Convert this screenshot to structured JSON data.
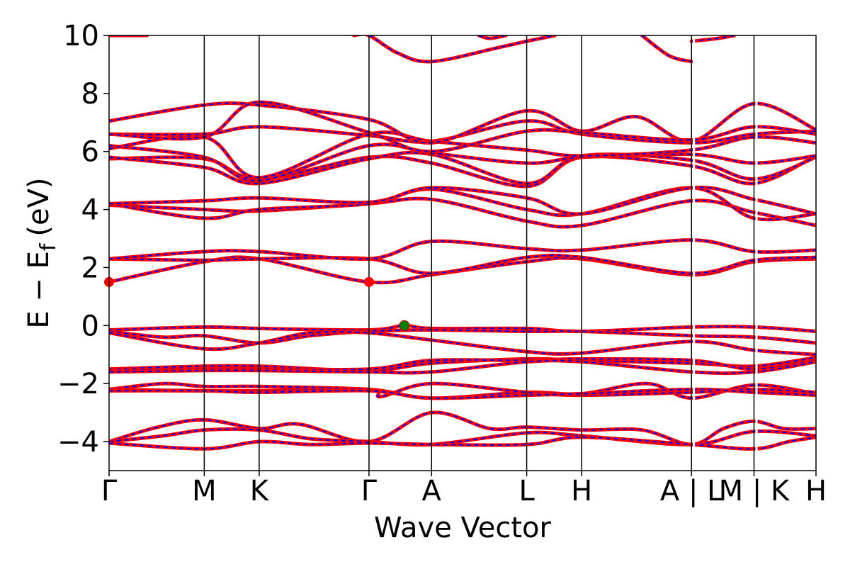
{
  "chart_data": {
    "type": "line",
    "title": "",
    "xlabel": "Wave Vector",
    "ylabel_parts": {
      "main": "E − E",
      "subscript": "f",
      "unit": "(eV)"
    },
    "ylim": [
      -5,
      10
    ],
    "yticks": [
      -4,
      -2,
      0,
      2,
      4,
      6,
      8,
      10
    ],
    "ytick_labels": [
      "−4",
      "−2",
      "0",
      "2",
      "4",
      "6",
      "8",
      "10"
    ],
    "xlim": [
      0,
      13.0
    ],
    "kpath": [
      {
        "label": "Γ",
        "x": 0.0
      },
      {
        "label": "M",
        "x": 1.75
      },
      {
        "label": "K",
        "x": 2.76
      },
      {
        "label": "Γ",
        "x": 4.78
      },
      {
        "label": "A",
        "x": 5.93
      },
      {
        "label": "L",
        "x": 7.68
      },
      {
        "label": "H",
        "x": 8.69
      },
      {
        "label": "A | L",
        "x": 10.71
      },
      {
        "label": "M | K",
        "x": 11.86
      },
      {
        "label": "H",
        "x": 13.0
      }
    ],
    "segment_breaks": [
      10.71,
      11.86
    ],
    "line_style": {
      "under_color": "#ff0000",
      "over_color": "#0000ff",
      "over_dash": "dashed"
    },
    "markers": [
      {
        "name": "cbm",
        "x": 0.0,
        "y": 1.5,
        "color": "#ff0000"
      },
      {
        "name": "cbm",
        "x": 4.78,
        "y": 1.5,
        "color": "#ff0000"
      },
      {
        "name": "vbm",
        "x": 5.43,
        "y": 0.0,
        "color": "#008000"
      }
    ],
    "bands": [
      [
        [
          0,
          -4.0
        ],
        [
          0.9,
          -3.5
        ],
        [
          1.75,
          -3.25
        ],
        [
          2.76,
          -3.55
        ],
        [
          3.5,
          -3.4
        ],
        [
          4.78,
          -4.0
        ],
        [
          5.93,
          -3.0
        ],
        [
          7.0,
          -3.55
        ],
        [
          7.68,
          -3.5
        ],
        [
          8.69,
          -3.6
        ],
        [
          9.8,
          -3.6
        ],
        [
          10.71,
          -4.1
        ],
        [
          11.3,
          -3.55
        ],
        [
          11.86,
          -3.3
        ],
        [
          12.4,
          -3.55
        ],
        [
          13.0,
          -3.55
        ]
      ],
      [
        [
          0,
          -4.0
        ],
        [
          1.0,
          -3.8
        ],
        [
          1.75,
          -3.6
        ],
        [
          2.76,
          -3.6
        ],
        [
          3.7,
          -3.9
        ],
        [
          4.78,
          -4.0
        ],
        [
          5.93,
          -4.1
        ],
        [
          7.68,
          -3.7
        ],
        [
          8.69,
          -3.8
        ],
        [
          10.71,
          -4.1
        ],
        [
          11.86,
          -3.65
        ],
        [
          13.0,
          -3.8
        ]
      ],
      [
        [
          0,
          -4.05
        ],
        [
          1.75,
          -4.25
        ],
        [
          2.76,
          -4.0
        ],
        [
          3.7,
          -4.1
        ],
        [
          4.78,
          -4.05
        ],
        [
          5.93,
          -4.1
        ],
        [
          7.68,
          -4.1
        ],
        [
          8.69,
          -3.85
        ],
        [
          10.71,
          -4.1
        ],
        [
          11.86,
          -4.25
        ],
        [
          12.5,
          -4.0
        ],
        [
          13.0,
          -3.85
        ]
      ],
      [
        [
          0,
          -2.2
        ],
        [
          1.0,
          -2.0
        ],
        [
          1.75,
          -2.1
        ],
        [
          2.76,
          -2.1
        ],
        [
          4.78,
          -2.2
        ],
        [
          5.93,
          -2.5
        ],
        [
          7.68,
          -2.3
        ],
        [
          8.69,
          -2.35
        ],
        [
          9.9,
          -2.0
        ],
        [
          10.71,
          -2.5
        ],
        [
          11.86,
          -2.05
        ],
        [
          13.0,
          -2.35
        ]
      ],
      [
        [
          0,
          -2.2
        ],
        [
          1.75,
          -2.25
        ],
        [
          2.76,
          -2.25
        ],
        [
          4.78,
          -2.2
        ],
        [
          5.0,
          -2.45
        ],
        [
          5.93,
          -2.0
        ],
        [
          7.68,
          -2.3
        ],
        [
          8.69,
          -2.4
        ],
        [
          10.71,
          -2.3
        ],
        [
          11.86,
          -2.2
        ],
        [
          13.0,
          -2.3
        ]
      ],
      [
        [
          0,
          -2.25
        ],
        [
          1.75,
          -2.25
        ],
        [
          2.76,
          -2.3
        ],
        [
          4.78,
          -2.25
        ],
        [
          5.93,
          -2.5
        ],
        [
          7.68,
          -2.4
        ],
        [
          8.69,
          -2.35
        ],
        [
          10.71,
          -2.2
        ],
        [
          11.86,
          -2.3
        ],
        [
          13.0,
          -2.4
        ]
      ],
      [
        [
          0,
          -1.5
        ],
        [
          1.75,
          -1.4
        ],
        [
          2.76,
          -1.4
        ],
        [
          4.78,
          -1.55
        ],
        [
          5.93,
          -1.3
        ],
        [
          7.68,
          -1.15
        ],
        [
          8.69,
          -1.2
        ],
        [
          10.71,
          -1.3
        ],
        [
          11.86,
          -1.4
        ],
        [
          13.0,
          -1.1
        ]
      ],
      [
        [
          0,
          -1.55
        ],
        [
          1.75,
          -1.5
        ],
        [
          2.76,
          -1.5
        ],
        [
          4.78,
          -1.5
        ],
        [
          5.93,
          -1.2
        ],
        [
          7.68,
          -1.2
        ],
        [
          8.69,
          -1.15
        ],
        [
          10.71,
          -1.2
        ],
        [
          11.86,
          -1.5
        ],
        [
          13.0,
          -1.2
        ]
      ],
      [
        [
          0,
          -1.6
        ],
        [
          1.75,
          -1.55
        ],
        [
          2.76,
          -1.55
        ],
        [
          4.78,
          -1.6
        ],
        [
          5.93,
          -1.6
        ],
        [
          7.68,
          -1.25
        ],
        [
          8.69,
          -1.25
        ],
        [
          10.71,
          -1.6
        ],
        [
          11.86,
          -1.6
        ],
        [
          13.0,
          -1.25
        ]
      ],
      [
        [
          0,
          -0.15
        ],
        [
          1.75,
          -0.05
        ],
        [
          2.76,
          -0.1
        ],
        [
          4.78,
          -0.15
        ],
        [
          5.43,
          0.0
        ],
        [
          5.93,
          -0.1
        ],
        [
          7.68,
          -0.1
        ],
        [
          8.69,
          -0.2
        ],
        [
          10.71,
          -0.05
        ],
        [
          11.86,
          -0.05
        ],
        [
          13.0,
          -0.2
        ]
      ],
      [
        [
          0,
          -0.2
        ],
        [
          1.0,
          -0.4
        ],
        [
          1.75,
          -0.35
        ],
        [
          2.76,
          -0.6
        ],
        [
          3.7,
          -0.35
        ],
        [
          4.78,
          -0.2
        ],
        [
          5.93,
          -0.15
        ],
        [
          7.68,
          -0.2
        ],
        [
          8.69,
          -0.2
        ],
        [
          10.71,
          -0.35
        ],
        [
          11.86,
          -0.4
        ],
        [
          13.0,
          -0.6
        ]
      ],
      [
        [
          0,
          -0.25
        ],
        [
          1.75,
          -0.8
        ],
        [
          2.76,
          -0.6
        ],
        [
          3.7,
          -0.25
        ],
        [
          4.78,
          -0.25
        ],
        [
          5.93,
          -0.5
        ],
        [
          7.68,
          -0.9
        ],
        [
          8.69,
          -0.95
        ],
        [
          10.71,
          -0.55
        ],
        [
          11.86,
          -0.85
        ],
        [
          13.0,
          -1.0
        ]
      ],
      [
        [
          0,
          1.5
        ],
        [
          1.75,
          2.2
        ],
        [
          2.76,
          2.3
        ],
        [
          4.78,
          1.5
        ],
        [
          5.93,
          1.75
        ],
        [
          7.68,
          2.2
        ],
        [
          8.69,
          2.3
        ],
        [
          10.71,
          1.75
        ],
        [
          11.86,
          2.2
        ],
        [
          13.0,
          2.3
        ]
      ],
      [
        [
          0,
          2.3
        ],
        [
          1.75,
          2.25
        ],
        [
          2.76,
          2.3
        ],
        [
          4.78,
          2.3
        ],
        [
          5.93,
          1.8
        ],
        [
          7.68,
          2.35
        ],
        [
          8.69,
          2.35
        ],
        [
          10.71,
          1.8
        ],
        [
          11.86,
          2.25
        ],
        [
          13.0,
          2.35
        ]
      ],
      [
        [
          0,
          2.3
        ],
        [
          1.75,
          2.55
        ],
        [
          2.76,
          2.55
        ],
        [
          4.78,
          2.3
        ],
        [
          5.93,
          2.9
        ],
        [
          7.68,
          2.65
        ],
        [
          8.69,
          2.6
        ],
        [
          10.71,
          2.95
        ],
        [
          11.86,
          2.55
        ],
        [
          13.0,
          2.6
        ]
      ],
      [
        [
          0,
          4.15
        ],
        [
          1.75,
          4.0
        ],
        [
          2.76,
          3.95
        ],
        [
          4.78,
          4.2
        ],
        [
          5.93,
          4.35
        ],
        [
          7.68,
          3.6
        ],
        [
          8.69,
          3.45
        ],
        [
          10.71,
          4.3
        ],
        [
          11.86,
          3.9
        ],
        [
          13.0,
          3.45
        ]
      ],
      [
        [
          0,
          4.2
        ],
        [
          1.75,
          3.7
        ],
        [
          2.76,
          4.0
        ],
        [
          4.78,
          4.2
        ],
        [
          5.93,
          4.7
        ],
        [
          7.68,
          4.0
        ],
        [
          8.69,
          3.85
        ],
        [
          10.71,
          4.75
        ],
        [
          11.86,
          3.7
        ],
        [
          13.0,
          3.85
        ]
      ],
      [
        [
          0,
          4.2
        ],
        [
          1.75,
          4.3
        ],
        [
          2.76,
          4.4
        ],
        [
          4.78,
          4.25
        ],
        [
          5.93,
          4.75
        ],
        [
          7.68,
          4.4
        ],
        [
          8.69,
          3.85
        ],
        [
          10.71,
          4.75
        ],
        [
          11.86,
          4.35
        ],
        [
          13.0,
          3.85
        ]
      ],
      [
        [
          0,
          5.75
        ],
        [
          1.75,
          5.75
        ],
        [
          2.76,
          5.05
        ],
        [
          4.78,
          5.8
        ],
        [
          5.93,
          5.6
        ],
        [
          7.68,
          4.8
        ],
        [
          8.69,
          5.8
        ],
        [
          10.71,
          5.5
        ],
        [
          11.86,
          4.9
        ],
        [
          13.0,
          5.85
        ]
      ],
      [
        [
          0,
          5.8
        ],
        [
          1.75,
          5.45
        ],
        [
          2.76,
          4.9
        ],
        [
          4.78,
          5.75
        ],
        [
          5.93,
          5.9
        ],
        [
          7.68,
          4.9
        ],
        [
          8.69,
          5.85
        ],
        [
          10.71,
          5.7
        ],
        [
          11.86,
          5.05
        ],
        [
          13.0,
          5.8
        ]
      ],
      [
        [
          0,
          6.2
        ],
        [
          1.75,
          5.8
        ],
        [
          2.76,
          5.0
        ],
        [
          4.78,
          6.2
        ],
        [
          5.93,
          5.95
        ],
        [
          7.68,
          5.6
        ],
        [
          8.69,
          5.8
        ],
        [
          10.71,
          5.9
        ],
        [
          11.86,
          5.6
        ],
        [
          13.0,
          5.85
        ]
      ],
      [
        [
          0,
          6.1
        ],
        [
          1.75,
          6.5
        ],
        [
          2.76,
          5.1
        ],
        [
          4.78,
          6.6
        ],
        [
          5.93,
          6.35
        ],
        [
          7.68,
          6.05
        ],
        [
          8.69,
          5.85
        ],
        [
          10.71,
          6.05
        ],
        [
          11.86,
          6.5
        ],
        [
          13.0,
          6.3
        ]
      ],
      [
        [
          0,
          6.6
        ],
        [
          1.75,
          6.6
        ],
        [
          2.76,
          6.85
        ],
        [
          4.78,
          6.55
        ],
        [
          5.93,
          6.35
        ],
        [
          7.68,
          7.05
        ],
        [
          8.69,
          6.6
        ],
        [
          10.71,
          6.3
        ],
        [
          11.86,
          6.6
        ],
        [
          13.0,
          6.7
        ]
      ],
      [
        [
          0,
          7.05
        ],
        [
          1.75,
          7.6
        ],
        [
          2.76,
          7.6
        ],
        [
          4.78,
          7.1
        ],
        [
          5.93,
          6.3
        ],
        [
          7.68,
          7.4
        ],
        [
          8.69,
          6.7
        ],
        [
          9.7,
          7.2
        ],
        [
          10.71,
          6.35
        ],
        [
          11.86,
          7.65
        ],
        [
          13.0,
          6.75
        ]
      ],
      [
        [
          0,
          6.6
        ],
        [
          1.75,
          6.5
        ],
        [
          2.76,
          7.7
        ],
        [
          4.78,
          6.65
        ],
        [
          5.93,
          6.0
        ],
        [
          7.68,
          6.7
        ],
        [
          8.69,
          6.65
        ],
        [
          10.71,
          6.4
        ],
        [
          11.86,
          6.85
        ],
        [
          13.0,
          6.6
        ]
      ],
      [
        [
          0,
          10.0
        ],
        [
          0.7,
          10.0
        ]
      ],
      [
        [
          4.5,
          10.0
        ],
        [
          4.78,
          10.0
        ],
        [
          5.3,
          9.4
        ],
        [
          5.93,
          9.1
        ],
        [
          7.2,
          9.6
        ],
        [
          7.68,
          9.8
        ],
        [
          8.2,
          10.0
        ]
      ],
      [
        [
          9.8,
          10.0
        ],
        [
          10.3,
          9.3
        ],
        [
          10.71,
          9.1
        ]
      ],
      [
        [
          10.71,
          9.8
        ],
        [
          11.2,
          9.9
        ],
        [
          11.5,
          10.0
        ]
      ],
      [
        [
          6.8,
          10.0
        ],
        [
          7.0,
          9.9
        ],
        [
          7.3,
          10.0
        ]
      ]
    ]
  }
}
